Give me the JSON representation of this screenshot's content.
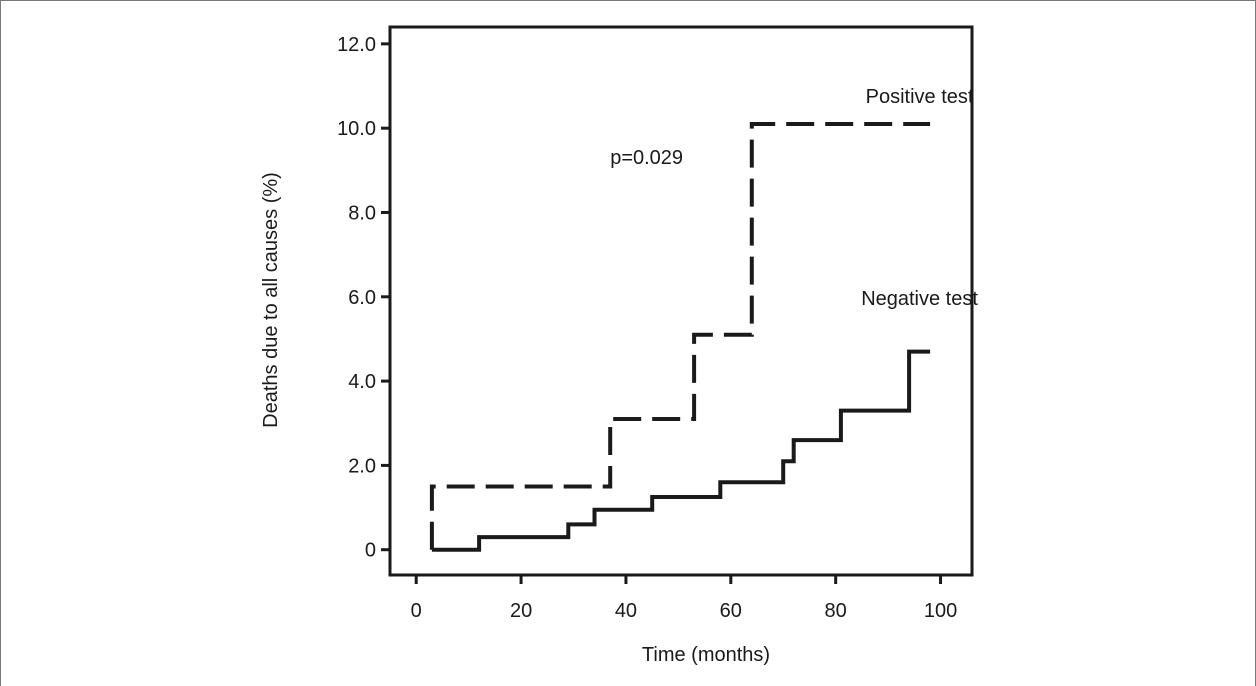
{
  "chart_data": {
    "type": "line",
    "chart_kind": "step",
    "xlabel": "Time (months)",
    "ylabel": "Deaths due to all causes (%)",
    "xlim": [
      -5,
      106
    ],
    "ylim": [
      -0.6,
      12.4
    ],
    "x_ticks": [
      0,
      20,
      40,
      60,
      80,
      100
    ],
    "y_ticks": [
      0,
      2.0,
      4.0,
      6.0,
      8.0,
      10.0,
      12.0
    ],
    "y_tick_labels": [
      "0",
      "2.0",
      "4.0",
      "6.0",
      "8.0",
      "10.0",
      "12.0"
    ],
    "grid": false,
    "annotations": [
      {
        "text": "p=0.029",
        "x": 37,
        "y": 9.15
      },
      {
        "text": "Positive test",
        "x": 96,
        "y": 10.6
      },
      {
        "text": "Negative test",
        "x": 96,
        "y": 5.8
      }
    ],
    "series": [
      {
        "name": "Positive test",
        "style": "dashed",
        "color": "#1a1a1a",
        "points": [
          [
            3,
            0
          ],
          [
            3,
            1.5
          ],
          [
            37,
            1.5
          ],
          [
            37,
            3.1
          ],
          [
            53,
            3.1
          ],
          [
            53,
            5.1
          ],
          [
            64,
            5.1
          ],
          [
            64,
            10.1
          ],
          [
            98,
            10.1
          ]
        ]
      },
      {
        "name": "Negative test",
        "style": "solid",
        "color": "#1a1a1a",
        "points": [
          [
            3,
            0
          ],
          [
            12,
            0
          ],
          [
            12,
            0.3
          ],
          [
            29,
            0.3
          ],
          [
            29,
            0.6
          ],
          [
            34,
            0.6
          ],
          [
            34,
            0.95
          ],
          [
            45,
            0.95
          ],
          [
            45,
            1.25
          ],
          [
            58,
            1.25
          ],
          [
            58,
            1.6
          ],
          [
            70,
            1.6
          ],
          [
            70,
            2.1
          ],
          [
            72,
            2.1
          ],
          [
            72,
            2.6
          ],
          [
            81,
            2.6
          ],
          [
            81,
            3.3
          ],
          [
            94,
            3.3
          ],
          [
            94,
            4.7
          ],
          [
            98,
            4.7
          ]
        ]
      }
    ]
  }
}
